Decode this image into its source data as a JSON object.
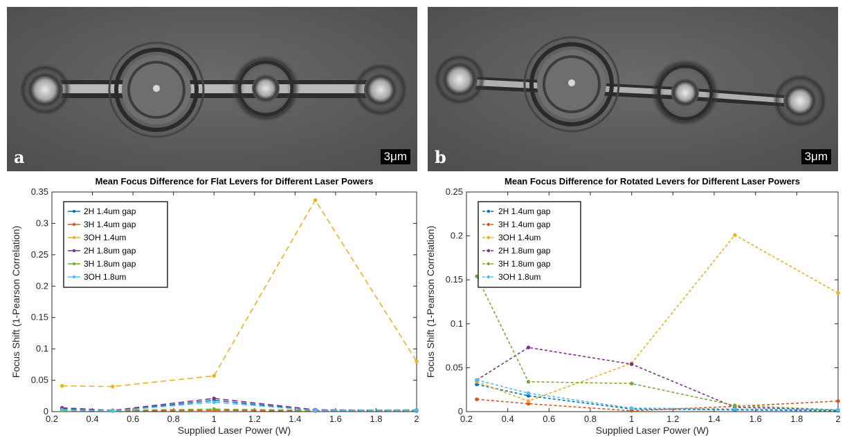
{
  "images": [
    {
      "letter": "a",
      "scale_label": "3μm"
    },
    {
      "letter": "b",
      "scale_label": "3μm"
    }
  ],
  "chart_data": [
    {
      "type": "line",
      "title": "Mean Focus Difference for Flat Levers for Different Laser Powers",
      "xlabel": "Supplied Laser Power (W)",
      "ylabel": "Focus Shift (1-Pearson Correlation)",
      "xlim": [
        0.2,
        2
      ],
      "ylim": [
        0,
        0.35
      ],
      "xticks": [
        0.2,
        0.4,
        0.6,
        0.8,
        1,
        1.2,
        1.4,
        1.6,
        1.8,
        2
      ],
      "xtick_labels": [
        "0.2",
        "0.4",
        "0.6",
        "0.8",
        "1",
        "1.2",
        "1.4",
        "1.6",
        "1.8",
        "2"
      ],
      "yticks": [
        0,
        0.05,
        0.1,
        0.15,
        0.2,
        0.25,
        0.3,
        0.35
      ],
      "ytick_labels": [
        "0",
        "0.05",
        "0.1",
        "0.15",
        "0.2",
        "0.25",
        "0.3",
        "0.35"
      ],
      "grid": false,
      "legend_position": "top-left",
      "line_style": "long-dash",
      "x": [
        0.25,
        0.5,
        1,
        1.5,
        2
      ],
      "series": [
        {
          "name": "2H 1.4um gap",
          "color": "#0072BD",
          "values": [
            0.005,
            0.001,
            0.018,
            0.002,
            0.001
          ]
        },
        {
          "name": "3H 1.4um gap",
          "color": "#D95319",
          "values": [
            0.002,
            0.001,
            0.002,
            0.001,
            0.001
          ]
        },
        {
          "name": "3OH 1.4um",
          "color": "#EDB120",
          "values": [
            0.041,
            0.04,
            0.057,
            0.337,
            0.08
          ]
        },
        {
          "name": "2H 1.8um gap",
          "color": "#7E2F8E",
          "values": [
            0.006,
            0.002,
            0.021,
            0.003,
            0.002
          ]
        },
        {
          "name": "3H 1.8um gap",
          "color": "#77AC30",
          "values": [
            0.002,
            0.002,
            0.004,
            0.002,
            0.003
          ]
        },
        {
          "name": "3OH 1.8um",
          "color": "#4DBEEE",
          "values": [
            0.003,
            0.001,
            0.015,
            0.002,
            0.002
          ]
        }
      ]
    },
    {
      "type": "line",
      "title": "Mean Focus Difference for Rotated Levers for Different Laser Powers",
      "xlabel": "Supplied Laser Power (W)",
      "ylabel": "Focus Shift (1-Pearson Correlation)",
      "xlim": [
        0.2,
        2
      ],
      "ylim": [
        0,
        0.25
      ],
      "xticks": [
        0.2,
        0.4,
        0.6,
        0.8,
        1,
        1.2,
        1.4,
        1.6,
        1.8,
        2
      ],
      "xtick_labels": [
        "0.2",
        "0.4",
        "0.6",
        "0.8",
        "1",
        "1.2",
        "1.4",
        "1.6",
        "1.8",
        "2"
      ],
      "yticks": [
        0,
        0.05,
        0.1,
        0.15,
        0.2,
        0.25
      ],
      "ytick_labels": [
        "0",
        "0.05",
        "0.1",
        "0.15",
        "0.2",
        "0.25"
      ],
      "grid": false,
      "legend_position": "top-left",
      "line_style": "short-dash",
      "x": [
        0.25,
        0.5,
        1,
        1.5,
        2
      ],
      "series": [
        {
          "name": "2H 1.4um gap",
          "color": "#0072BD",
          "values": [
            0.031,
            0.018,
            0.003,
            0.002,
            0.001
          ]
        },
        {
          "name": "3H 1.4um gap",
          "color": "#D95319",
          "values": [
            0.014,
            0.009,
            0.001,
            0.006,
            0.012
          ]
        },
        {
          "name": "3OH 1.4um",
          "color": "#EDB120",
          "values": [
            0.034,
            0.012,
            0.055,
            0.201,
            0.135
          ]
        },
        {
          "name": "2H 1.8um gap",
          "color": "#7E2F8E",
          "values": [
            0.036,
            0.073,
            0.054,
            0.005,
            0.002
          ]
        },
        {
          "name": "3H 1.8um gap",
          "color": "#77AC30",
          "values": [
            0.154,
            0.034,
            0.032,
            0.007,
            0.002
          ]
        },
        {
          "name": "3OH 1.8um",
          "color": "#4DBEEE",
          "values": [
            0.036,
            0.021,
            0.004,
            0.003,
            0.002
          ]
        }
      ]
    }
  ]
}
